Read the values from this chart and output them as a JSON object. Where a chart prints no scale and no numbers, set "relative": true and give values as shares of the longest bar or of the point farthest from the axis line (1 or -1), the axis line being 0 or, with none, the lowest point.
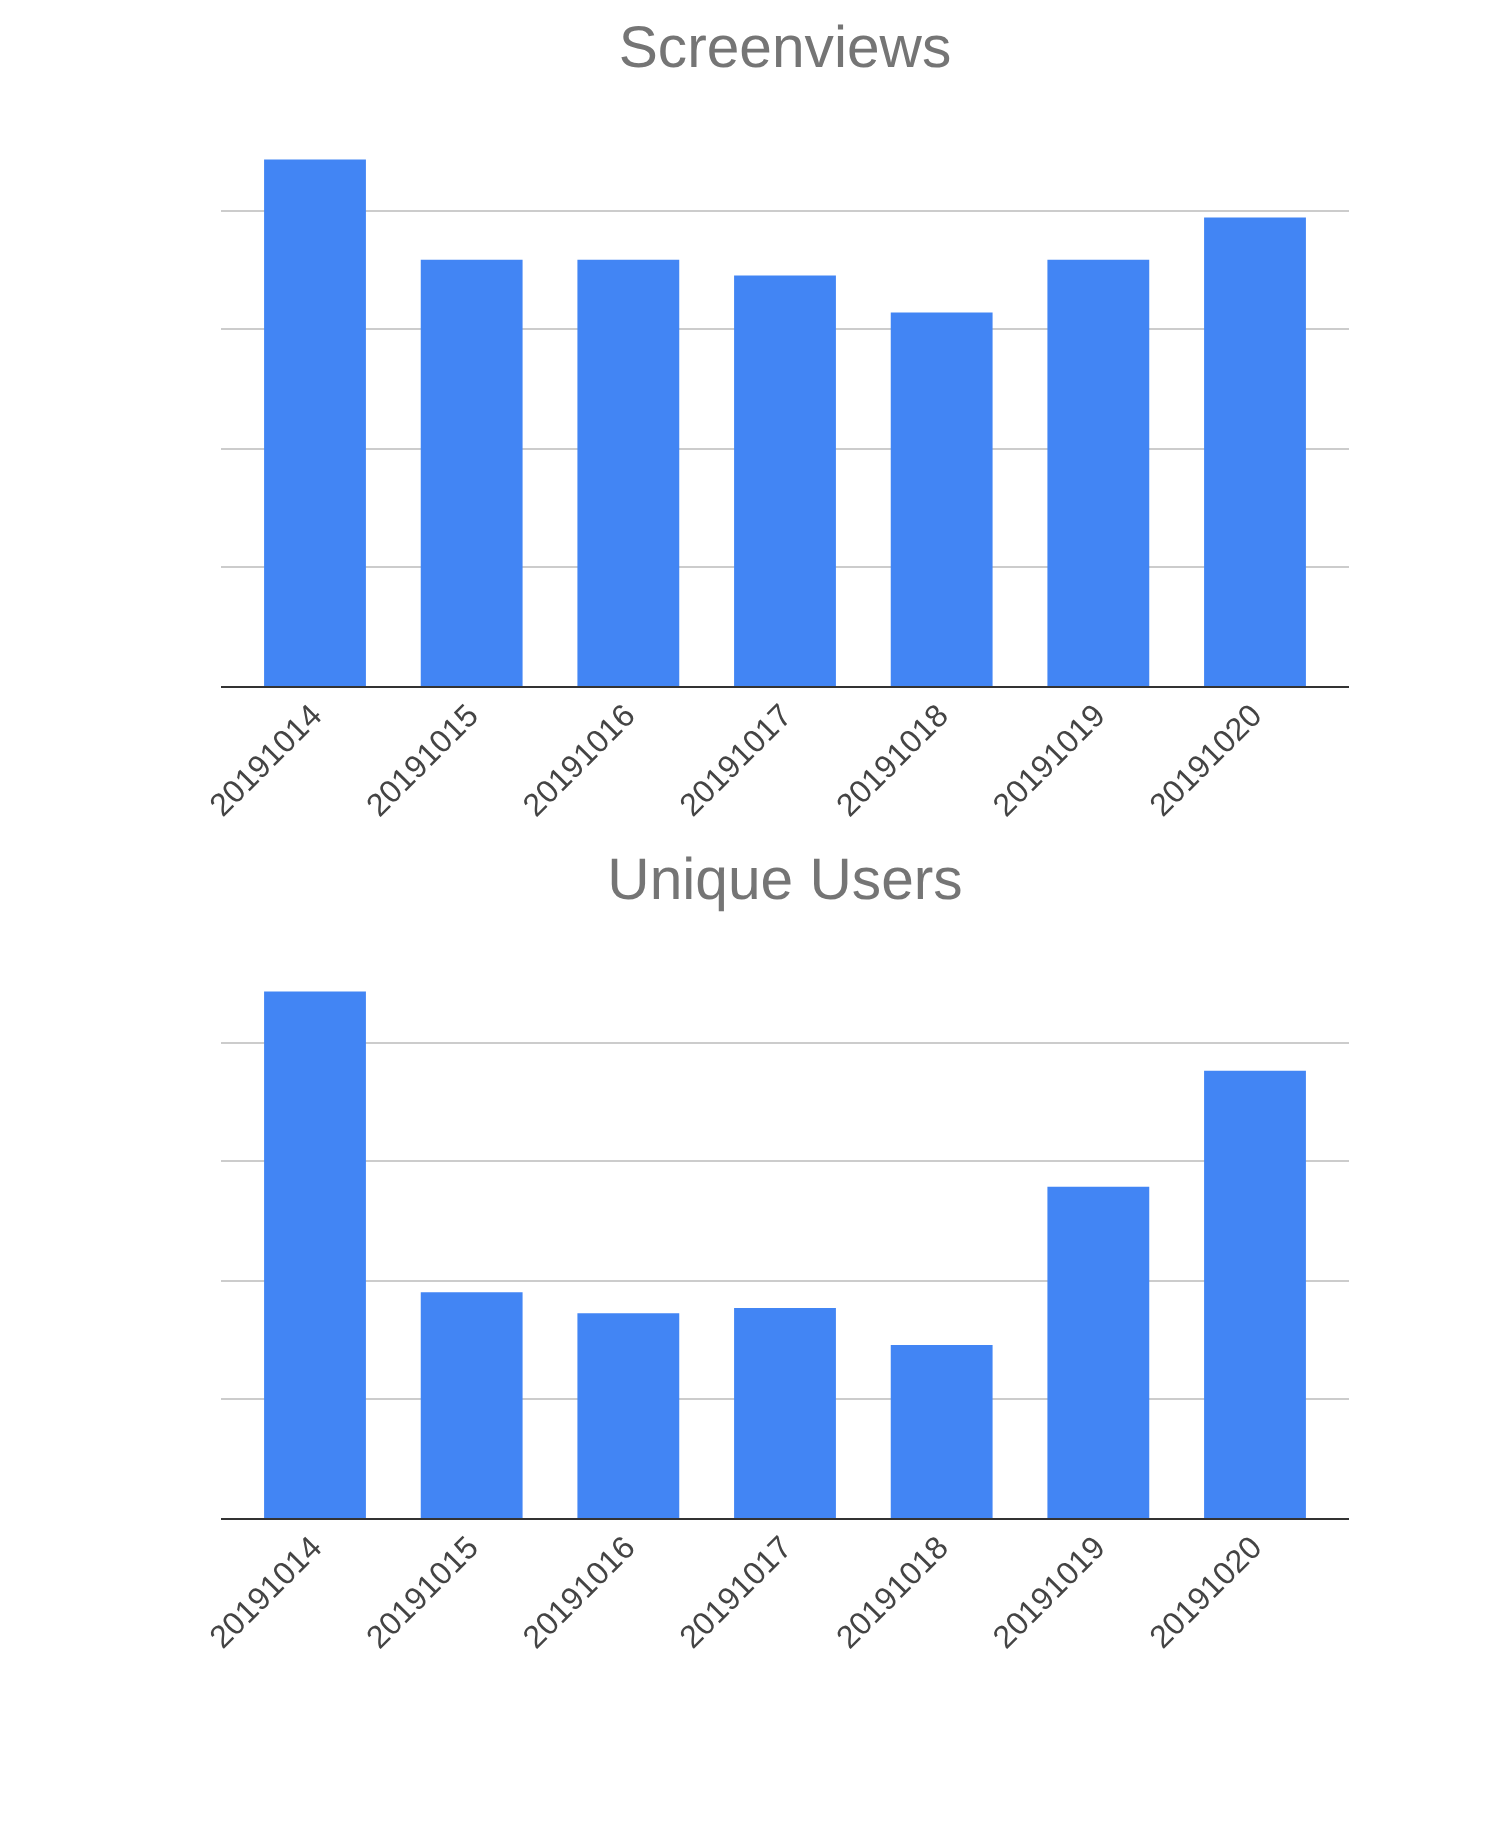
{
  "chart_data": [
    {
      "type": "bar",
      "title": "Screenviews",
      "categories": [
        "20191014",
        "20191015",
        "20191016",
        "20191017",
        "20191018",
        "20191019",
        "20191020"
      ],
      "values": [
        1,
        0.81,
        0.81,
        0.78,
        0.71,
        0.81,
        0.89
      ],
      "color": "#4285f4",
      "relative": true,
      "grid": "y"
    },
    {
      "type": "bar",
      "title": "Unique Users",
      "categories": [
        "20191014",
        "20191015",
        "20191016",
        "20191017",
        "20191018",
        "20191019",
        "20191020"
      ],
      "values": [
        1,
        0.43,
        0.39,
        0.4,
        0.33,
        0.63,
        0.85
      ],
      "color": "#4285f4",
      "relative": true,
      "grid": "y"
    }
  ]
}
